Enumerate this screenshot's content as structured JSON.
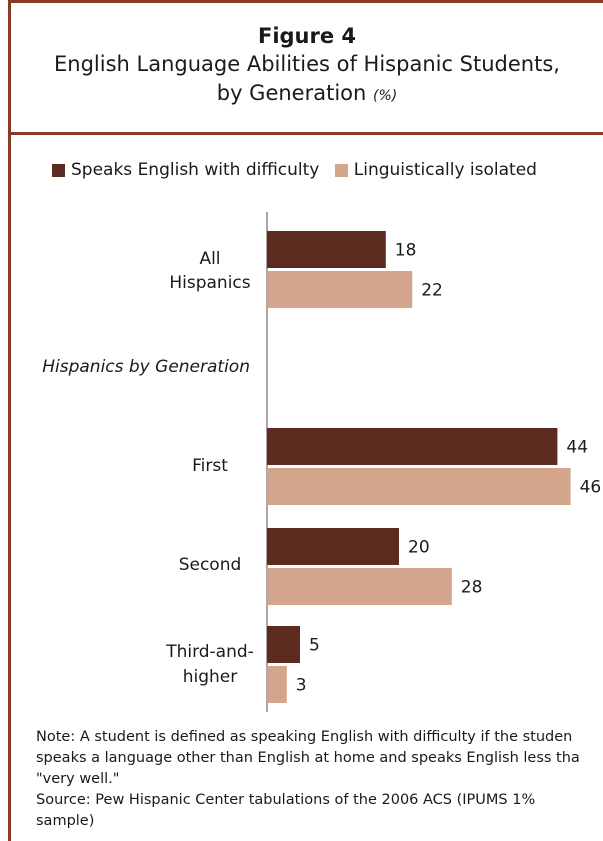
{
  "header": {
    "figure_label": "Figure 4",
    "title_line1": "English Language Abilities of Hispanic Students,",
    "title_line2": "by Generation",
    "unit": "(%)"
  },
  "legend": [
    {
      "name": "Speaks English with difficulty",
      "color": "#5c2a1e"
    },
    {
      "name": "Linguistically isolated",
      "color": "#d3a58c"
    }
  ],
  "chart_data": {
    "type": "bar",
    "orientation": "horizontal",
    "title": "English Language Abilities of Hispanic Students, by Generation (%)",
    "section_label": "Hispanics by Generation",
    "categories": [
      {
        "label_lines": [
          "All",
          "Hispanics"
        ]
      },
      {
        "label_lines": [
          "First"
        ]
      },
      {
        "label_lines": [
          "Second"
        ]
      },
      {
        "label_lines": [
          "Third-and-",
          "higher"
        ]
      }
    ],
    "series": [
      {
        "name": "Speaks English with difficulty",
        "values": [
          18,
          44,
          20,
          5
        ],
        "color": "#5c2a1e"
      },
      {
        "name": "Linguistically isolated",
        "values": [
          22,
          46,
          28,
          3
        ],
        "color": "#d3a58c"
      }
    ],
    "xlim": [
      0,
      46
    ],
    "grid": false,
    "legend_position": "top"
  },
  "footer": {
    "note_line1": "Note: A student is defined as speaking English with difficulty if the studen",
    "note_line2": "speaks a language other than English at home and speaks English less tha",
    "note_line3": "\"very well.\"",
    "source_line1": "Source: Pew Hispanic Center tabulations of the 2006 ACS (IPUMS 1%",
    "source_line2": "sample)"
  }
}
